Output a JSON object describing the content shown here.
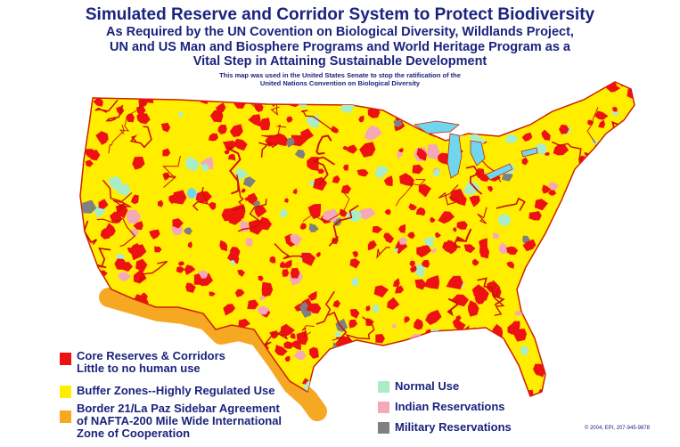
{
  "header": {
    "title": "Simulated Reserve and Corridor System to Protect Biodiversity",
    "subtitle_lines": [
      "As Required by the UN Covention on Biological Diversity, Wildlands Project,",
      "UN and US Man and Biosphere Programs and World Heritage Program as a",
      "Vital Step in Attaining Sustainable Development"
    ],
    "note_lines": [
      "This map was used in the United States Senate to stop the ratification of the",
      "United Nations Convention on Biological Diversity"
    ]
  },
  "colors": {
    "core": "#ee1111",
    "buffer": "#ffee00",
    "border_zone": "#f7a823",
    "normal": "#a8edc8",
    "indian": "#f5a9b8",
    "military": "#808080",
    "water": "#6fd6ee",
    "text": "#1a237e"
  },
  "legend": {
    "core_lines": [
      "Core Reserves & Corridors",
      "Little to no human use"
    ],
    "buffer": "Buffer Zones--Highly Regulated Use",
    "border_lines": [
      "Border 21/La Paz Sidebar Agreement",
      "of NAFTA-200 Mile Wide International",
      "Zone of Cooperation"
    ],
    "normal": "Normal Use",
    "indian": "Indian Reservations",
    "military": "Military Reservations"
  },
  "copyright": "© 2004, EPI, 207-945-9878"
}
